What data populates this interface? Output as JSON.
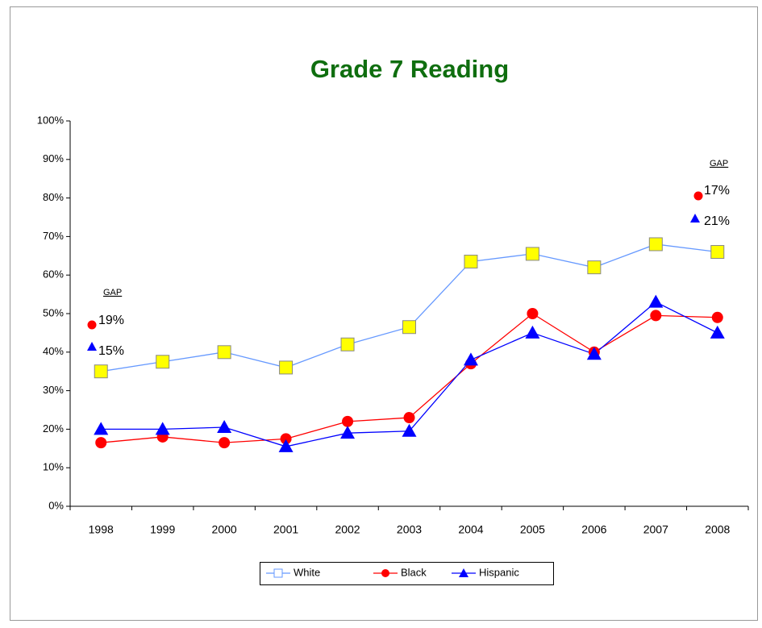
{
  "chart_data": {
    "type": "line",
    "title": "Grade 7 Reading",
    "categories": [
      "1998",
      "1999",
      "2000",
      "2001",
      "2002",
      "2003",
      "2004",
      "2005",
      "2006",
      "2007",
      "2008"
    ],
    "series": [
      {
        "name": "White",
        "color": "#6699ff",
        "marker": "square",
        "marker_color": "#ffff00",
        "values": [
          35,
          37.5,
          40,
          36,
          42,
          46.5,
          63.5,
          65.5,
          62,
          68,
          66
        ]
      },
      {
        "name": "Black",
        "color": "#ff0000",
        "marker": "circle",
        "marker_color": "#ff0000",
        "values": [
          16.5,
          18,
          16.5,
          17.5,
          22,
          23,
          37,
          50,
          40,
          49.5,
          49
        ]
      },
      {
        "name": "Hispanic",
        "color": "#0000ff",
        "marker": "triangle",
        "marker_color": "#0000ff",
        "values": [
          20,
          20,
          20.5,
          15.5,
          19,
          19.5,
          38,
          45,
          39.5,
          53,
          45
        ]
      }
    ],
    "ylim": [
      0,
      100
    ],
    "yticks": [
      {
        "value": 0,
        "label": "0%"
      },
      {
        "value": 10,
        "label": "10%"
      },
      {
        "value": 20,
        "label": "20%"
      },
      {
        "value": 30,
        "label": "30%"
      },
      {
        "value": 40,
        "label": "40%"
      },
      {
        "value": 50,
        "label": "50%"
      },
      {
        "value": 60,
        "label": "60%"
      },
      {
        "value": 70,
        "label": "70%"
      },
      {
        "value": 80,
        "label": "80%"
      },
      {
        "value": 90,
        "label": "90%"
      },
      {
        "value": 100,
        "label": "100%"
      }
    ],
    "grid": false,
    "legend": "bottom",
    "annotations": [
      "GAP",
      "19%",
      "15%",
      "GAP",
      "17%",
      "21%"
    ]
  }
}
